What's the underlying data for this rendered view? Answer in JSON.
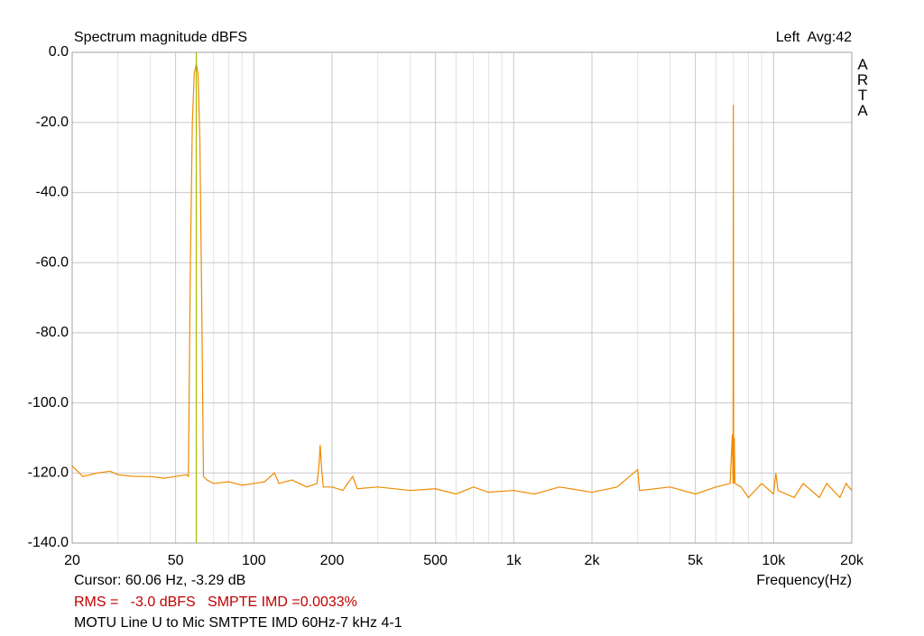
{
  "chart_data": {
    "type": "line",
    "title": "Spectrum magnitude dBFS",
    "channel_label": "Left  Avg:42",
    "watermark": "ARTA",
    "xlabel": "Frequency(Hz)",
    "cursor": {
      "x": 60.06,
      "label": "Cursor: 60.06 Hz, -3.29 dB",
      "color": "#a8b800"
    },
    "info_line": "RMS =   -3.0 dBFS   SMPTE IMD =0.0033%",
    "caption": "MOTU Line U to Mic SMTPTE IMD 60Hz-7 kHz 4-1",
    "xscale": "log",
    "grid": true,
    "xlim": [
      20,
      20000
    ],
    "ylim": [
      -140,
      0
    ],
    "xticks": [
      20,
      50,
      100,
      200,
      500,
      {
        "value": 1000,
        "label": "1k"
      },
      {
        "value": 2000,
        "label": "2k"
      },
      {
        "value": 5000,
        "label": "5k"
      },
      {
        "value": 10000,
        "label": "10k"
      },
      {
        "value": 20000,
        "label": "20k"
      }
    ],
    "xminorticks": [
      30,
      40,
      60,
      70,
      80,
      90,
      300,
      400,
      600,
      700,
      800,
      900,
      3000,
      4000,
      6000,
      7000,
      8000,
      9000
    ],
    "yticks": [
      {
        "value": 0,
        "label": "0.0"
      },
      {
        "value": -20,
        "label": "-20.0"
      },
      {
        "value": -40,
        "label": "-40.0"
      },
      {
        "value": -60,
        "label": "-60.0"
      },
      {
        "value": -80,
        "label": "-80.0"
      },
      {
        "value": -100,
        "label": "-100.0"
      },
      {
        "value": -120,
        "label": "-120.0"
      },
      {
        "value": -140,
        "label": "-140.0"
      }
    ],
    "x": [
      20,
      22,
      25,
      28,
      30,
      35,
      40,
      45,
      50,
      55,
      56,
      57,
      58,
      59,
      60.06,
      61,
      62,
      63,
      64,
      66,
      70,
      80,
      90,
      100,
      110,
      120,
      125,
      140,
      160,
      175,
      178,
      180,
      182,
      185,
      200,
      220,
      240,
      250,
      300,
      400,
      500,
      600,
      700,
      800,
      1000,
      1200,
      1500,
      2000,
      2500,
      3000,
      3050,
      4000,
      5000,
      6000,
      6800,
      6940,
      6980,
      7000,
      7020,
      7060,
      7100,
      7500,
      8000,
      9000,
      10000,
      10200,
      10400,
      12000,
      13000,
      15000,
      16000,
      18000,
      19000,
      20000
    ],
    "series": [
      {
        "name": "Left",
        "color": "#f08a00",
        "values": [
          -118,
          -121,
          -120,
          -119.5,
          -120.5,
          -121,
          -121,
          -121.5,
          -121,
          -120.5,
          -121,
          -60,
          -20,
          -6,
          -3.29,
          -6,
          -25,
          -70,
          -121,
          -122,
          -123,
          -122.5,
          -123.5,
          -123,
          -122.5,
          -120,
          -123,
          -122,
          -124,
          -123,
          -118,
          -112,
          -118,
          -124,
          -124,
          -125,
          -121,
          -124.5,
          -124,
          -125,
          -124.5,
          -126,
          -124,
          -125.5,
          -125,
          -126,
          -124,
          -125.5,
          -124,
          -119,
          -125,
          -124,
          -126,
          -124,
          -123,
          -109,
          -123,
          -15,
          -123,
          -110,
          -123,
          -124,
          -127,
          -123,
          -126,
          -120,
          -125,
          -127,
          -123,
          -127,
          -123,
          -127,
          -123,
          -125
        ]
      }
    ]
  }
}
